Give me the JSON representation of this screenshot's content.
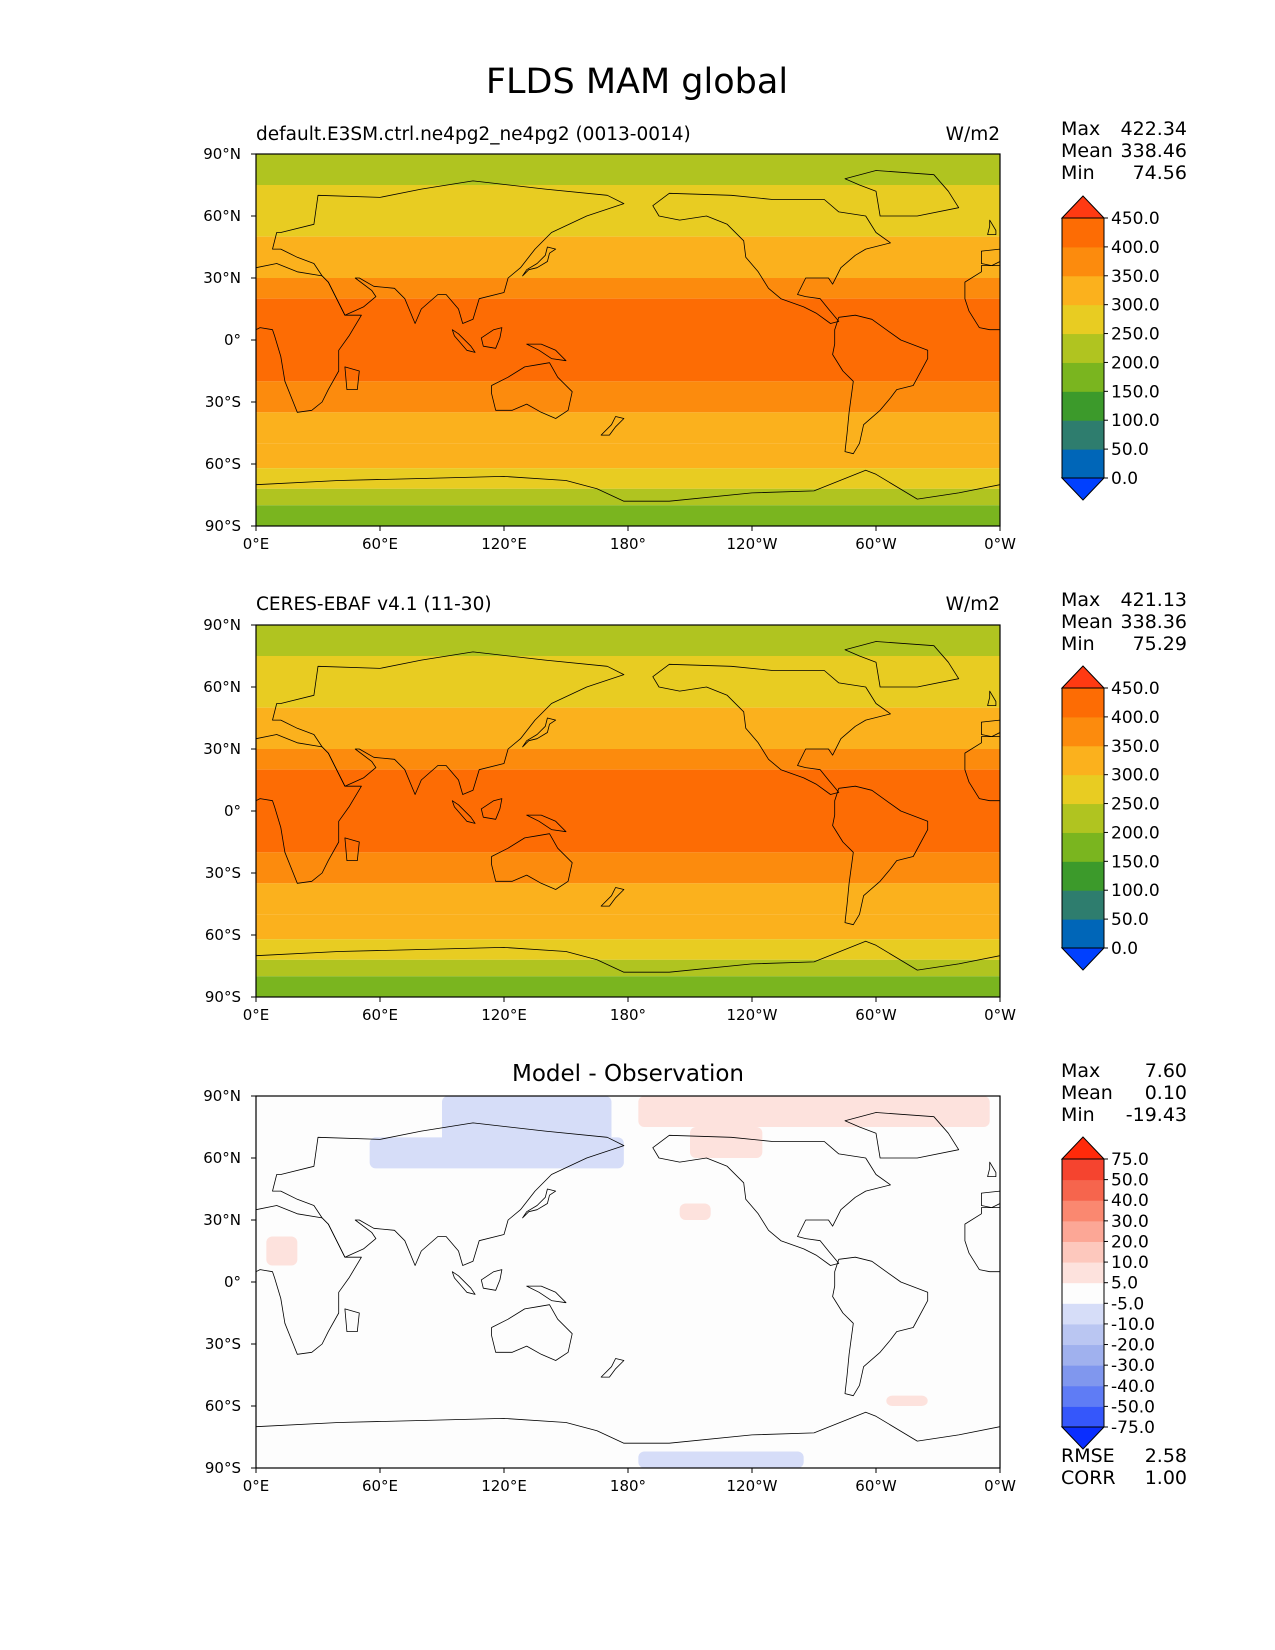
{
  "figure": {
    "title": "FLDS MAM global"
  },
  "axes": {
    "x_ticks": [
      "0°E",
      "60°E",
      "120°E",
      "180°",
      "120°W",
      "60°W",
      "0°W"
    ],
    "y_ticks": [
      "90°N",
      "60°N",
      "30°N",
      "0°",
      "30°S",
      "60°S",
      "90°S"
    ]
  },
  "panels": [
    {
      "title_left": "default.E3SM.ctrl.ne4pg2_ne4pg2 (0013-0014)",
      "title_right": "W/m2",
      "title_center": "",
      "stats": [
        {
          "label": "Max",
          "value": "422.34"
        },
        {
          "label": "Mean",
          "value": "338.46"
        },
        {
          "label": "Min",
          "value": "74.56"
        }
      ],
      "colorbar": {
        "labels": [
          "450.0",
          "400.0",
          "350.0",
          "300.0",
          "250.0",
          "200.0",
          "150.0",
          "100.0",
          "50.0",
          "0.0"
        ],
        "colors": [
          "#0040ff",
          "#0066b8",
          "#2e7d6e",
          "#3c9a2b",
          "#7ab51f",
          "#b0c420",
          "#e8cc22",
          "#fbb11d",
          "#fc8b0d",
          "#fd6c04",
          "#ff3a12"
        ]
      },
      "extra_stats": []
    },
    {
      "title_left": "CERES-EBAF v4.1 (11-30)",
      "title_right": "W/m2",
      "title_center": "",
      "stats": [
        {
          "label": "Max",
          "value": "421.13"
        },
        {
          "label": "Mean",
          "value": "338.36"
        },
        {
          "label": "Min",
          "value": "75.29"
        }
      ],
      "colorbar": {
        "labels": [
          "450.0",
          "400.0",
          "350.0",
          "300.0",
          "250.0",
          "200.0",
          "150.0",
          "100.0",
          "50.0",
          "0.0"
        ],
        "colors": [
          "#0040ff",
          "#0066b8",
          "#2e7d6e",
          "#3c9a2b",
          "#7ab51f",
          "#b0c420",
          "#e8cc22",
          "#fbb11d",
          "#fc8b0d",
          "#fd6c04",
          "#ff3a12"
        ]
      },
      "extra_stats": []
    },
    {
      "title_left": "",
      "title_right": "",
      "title_center": "Model - Observation",
      "stats": [
        {
          "label": "Max",
          "value": "7.60"
        },
        {
          "label": "Mean",
          "value": "0.10"
        },
        {
          "label": "Min",
          "value": "-19.43"
        }
      ],
      "colorbar": {
        "labels": [
          "75.0",
          "50.0",
          "40.0",
          "30.0",
          "20.0",
          "10.0",
          "5.0",
          "-5.0",
          "-10.0",
          "-20.0",
          "-30.0",
          "-40.0",
          "-50.0",
          "-75.0"
        ],
        "colors": [
          "#0a2eff",
          "#3557fb",
          "#5f7cf5",
          "#8097ee",
          "#a0b1ee",
          "#bac6f2",
          "#d6ddf8",
          "#fdfdfd",
          "#fde2dd",
          "#fdc8bd",
          "#fca796",
          "#fa8870",
          "#f6654d",
          "#f5442f",
          "#ff2a0a"
        ]
      },
      "extra_stats": [
        {
          "label": "RMSE",
          "value": "2.58"
        },
        {
          "label": "CORR",
          "value": "1.00"
        }
      ]
    }
  ],
  "chart_data": [
    {
      "type": "heatmap",
      "title": "default.E3SM.ctrl.ne4pg2_ne4pg2 (0013-0014)",
      "units": "W/m2",
      "xlim": [
        0,
        360
      ],
      "ylim": [
        -90,
        90
      ],
      "levels": [
        0,
        50,
        100,
        150,
        200,
        250,
        300,
        350,
        400,
        450
      ],
      "zonal_bands": [
        {
          "lat_min": 75,
          "lat_max": 90,
          "value": 200
        },
        {
          "lat_min": 50,
          "lat_max": 75,
          "value": 250
        },
        {
          "lat_min": 30,
          "lat_max": 50,
          "value": 300
        },
        {
          "lat_min": 20,
          "lat_max": 30,
          "value": 350
        },
        {
          "lat_min": -20,
          "lat_max": 20,
          "value": 400
        },
        {
          "lat_min": -35,
          "lat_max": -20,
          "value": 350
        },
        {
          "lat_min": -50,
          "lat_max": -35,
          "value": 330
        },
        {
          "lat_min": -62,
          "lat_max": -50,
          "value": 300
        },
        {
          "lat_min": -72,
          "lat_max": -62,
          "value": 250
        },
        {
          "lat_min": -80,
          "lat_max": -72,
          "value": 200
        },
        {
          "lat_min": -90,
          "lat_max": -80,
          "value": 150
        }
      ],
      "max": 422.34,
      "mean": 338.46,
      "min": 74.56
    },
    {
      "type": "heatmap",
      "title": "CERES-EBAF v4.1 (11-30)",
      "units": "W/m2",
      "xlim": [
        0,
        360
      ],
      "ylim": [
        -90,
        90
      ],
      "levels": [
        0,
        50,
        100,
        150,
        200,
        250,
        300,
        350,
        400,
        450
      ],
      "zonal_bands": [
        {
          "lat_min": 75,
          "lat_max": 90,
          "value": 200
        },
        {
          "lat_min": 50,
          "lat_max": 75,
          "value": 250
        },
        {
          "lat_min": 30,
          "lat_max": 50,
          "value": 300
        },
        {
          "lat_min": 20,
          "lat_max": 30,
          "value": 350
        },
        {
          "lat_min": -20,
          "lat_max": 20,
          "value": 400
        },
        {
          "lat_min": -35,
          "lat_max": -20,
          "value": 350
        },
        {
          "lat_min": -50,
          "lat_max": -35,
          "value": 330
        },
        {
          "lat_min": -62,
          "lat_max": -50,
          "value": 300
        },
        {
          "lat_min": -72,
          "lat_max": -62,
          "value": 250
        },
        {
          "lat_min": -80,
          "lat_max": -72,
          "value": 200
        },
        {
          "lat_min": -90,
          "lat_max": -80,
          "value": 150
        }
      ],
      "max": 421.13,
      "mean": 338.36,
      "min": 75.29
    },
    {
      "type": "heatmap",
      "title": "Model - Observation",
      "xlim": [
        0,
        360
      ],
      "ylim": [
        -90,
        90
      ],
      "levels": [
        -75,
        -50,
        -40,
        -30,
        -20,
        -10,
        -5,
        5,
        10,
        20,
        30,
        40,
        50,
        75
      ],
      "anomalies": [
        {
          "lon_min": 90,
          "lon_max": 172,
          "lat_min": 60,
          "lat_max": 90,
          "value": -10
        },
        {
          "lon_min": 55,
          "lon_max": 178,
          "lat_min": 55,
          "lat_max": 70,
          "value": -7
        },
        {
          "lon_min": 185,
          "lon_max": 355,
          "lat_min": 75,
          "lat_max": 90,
          "value": 7
        },
        {
          "lon_min": 210,
          "lon_max": 245,
          "lat_min": 60,
          "lat_max": 75,
          "value": 7
        },
        {
          "lon_min": 205,
          "lon_max": 220,
          "lat_min": 30,
          "lat_max": 38,
          "value": 7
        },
        {
          "lon_min": 5,
          "lon_max": 20,
          "lat_min": 8,
          "lat_max": 22,
          "value": 7
        },
        {
          "lon_min": 185,
          "lon_max": 265,
          "lat_min": -90,
          "lat_max": -82,
          "value": -7
        },
        {
          "lon_min": 305,
          "lon_max": 325,
          "lat_min": -60,
          "lat_max": -55,
          "value": 7
        }
      ],
      "max": 7.6,
      "mean": 0.1,
      "min": -19.43,
      "rmse": 2.58,
      "corr": 1.0
    }
  ]
}
